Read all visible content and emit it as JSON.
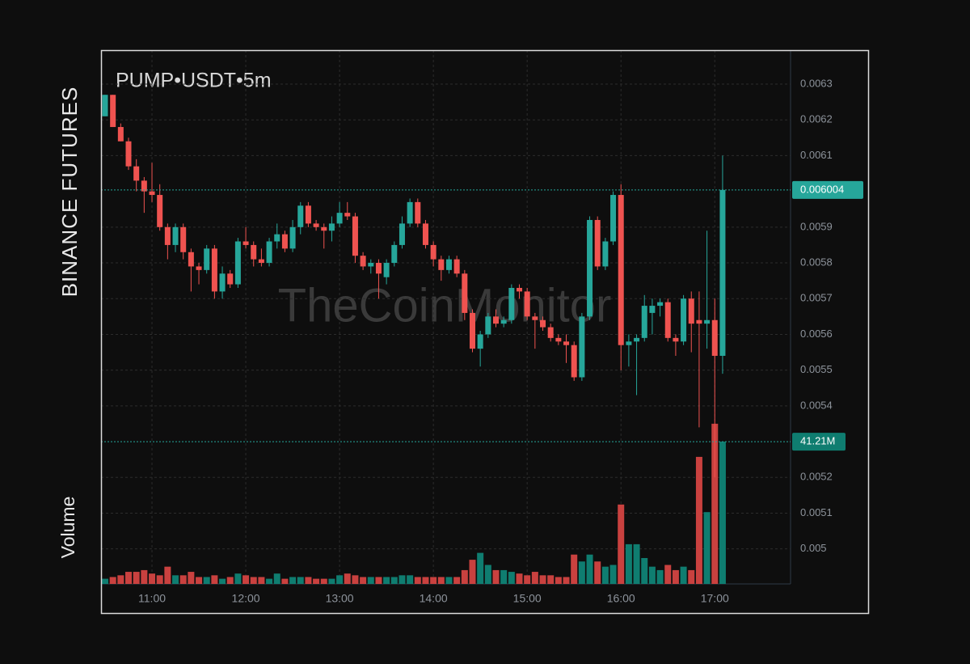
{
  "chart_data": {
    "type": "candlestick",
    "title": "PUMP•USDT•5m",
    "exchange": "BINANCE FUTURES",
    "watermark": "TheCoinMonitor",
    "x": [
      "10:30",
      "10:35",
      "10:40",
      "10:45",
      "10:50",
      "10:55",
      "11:00",
      "11:05",
      "11:10",
      "11:15",
      "11:20",
      "11:25",
      "11:30",
      "11:35",
      "11:40",
      "11:45",
      "11:50",
      "11:55",
      "12:00",
      "12:05",
      "12:10",
      "12:15",
      "12:20",
      "12:25",
      "12:30",
      "12:35",
      "12:40",
      "12:45",
      "12:50",
      "12:55",
      "13:00",
      "13:05",
      "13:10",
      "13:15",
      "13:20",
      "13:25",
      "13:30",
      "13:35",
      "13:40",
      "13:45",
      "13:50",
      "13:55",
      "14:00",
      "14:05",
      "14:10",
      "14:15",
      "14:20",
      "14:25",
      "14:30",
      "14:35",
      "14:40",
      "14:45",
      "14:50",
      "14:55",
      "15:00",
      "15:05",
      "15:10",
      "15:15",
      "15:20",
      "15:25",
      "15:30",
      "15:35",
      "15:40",
      "15:45",
      "15:50",
      "15:55",
      "16:00",
      "16:05",
      "16:10",
      "16:15",
      "16:20",
      "16:25",
      "16:30",
      "16:35",
      "16:40",
      "16:45",
      "16:50",
      "16:55",
      "17:00",
      "17:05"
    ],
    "open": [
      0.00621,
      0.00627,
      0.00618,
      0.00614,
      0.00607,
      0.00603,
      0.006,
      0.00599,
      0.0059,
      0.00585,
      0.0059,
      0.00583,
      0.00579,
      0.00578,
      0.00584,
      0.00572,
      0.00577,
      0.00574,
      0.00586,
      0.00585,
      0.00581,
      0.0058,
      0.00586,
      0.00588,
      0.00584,
      0.0059,
      0.00596,
      0.00591,
      0.0059,
      0.00589,
      0.00591,
      0.00594,
      0.00593,
      0.00582,
      0.00579,
      0.0058,
      0.00576,
      0.0058,
      0.00585,
      0.00591,
      0.00597,
      0.00591,
      0.00585,
      0.00581,
      0.00578,
      0.00581,
      0.00577,
      0.00566,
      0.00556,
      0.0056,
      0.00565,
      0.00563,
      0.00564,
      0.00573,
      0.00572,
      0.00565,
      0.00564,
      0.00562,
      0.00559,
      0.00558,
      0.00557,
      0.00548,
      0.00565,
      0.00592,
      0.00579,
      0.00586,
      0.00599,
      0.00557,
      0.00558,
      0.00559,
      0.00566,
      0.00568,
      0.00569,
      0.00559,
      0.00558,
      0.0057,
      0.00564,
      0.00563,
      0.00564,
      0.00554
    ],
    "high": [
      0.00627,
      0.00627,
      0.00619,
      0.00615,
      0.00609,
      0.00604,
      0.00608,
      0.00602,
      0.00591,
      0.00591,
      0.00591,
      0.00584,
      0.0058,
      0.00585,
      0.00585,
      0.00579,
      0.00578,
      0.00587,
      0.0059,
      0.00586,
      0.00584,
      0.00587,
      0.00591,
      0.00589,
      0.00592,
      0.00597,
      0.00597,
      0.00592,
      0.00591,
      0.00593,
      0.00597,
      0.00597,
      0.00594,
      0.00583,
      0.00581,
      0.00581,
      0.00581,
      0.00586,
      0.00593,
      0.00598,
      0.00598,
      0.00592,
      0.00586,
      0.00582,
      0.00582,
      0.00582,
      0.00578,
      0.00567,
      0.00561,
      0.00566,
      0.00567,
      0.00565,
      0.00574,
      0.00574,
      0.00573,
      0.00566,
      0.00565,
      0.00563,
      0.0056,
      0.0056,
      0.00558,
      0.00566,
      0.00593,
      0.00593,
      0.00587,
      0.006,
      0.00602,
      0.0056,
      0.0056,
      0.00571,
      0.0057,
      0.0057,
      0.0057,
      0.0056,
      0.00571,
      0.00572,
      0.00572,
      0.00589,
      0.0057,
      0.0061
    ],
    "low": [
      0.00621,
      0.00618,
      0.00614,
      0.00606,
      0.006,
      0.00594,
      0.00597,
      0.00589,
      0.00581,
      0.00583,
      0.00581,
      0.00572,
      0.00574,
      0.00577,
      0.0057,
      0.0057,
      0.00573,
      0.00573,
      0.00584,
      0.00579,
      0.00579,
      0.00579,
      0.00584,
      0.00583,
      0.00583,
      0.00588,
      0.0059,
      0.00589,
      0.00584,
      0.00586,
      0.0059,
      0.00592,
      0.0058,
      0.00578,
      0.00577,
      0.0057,
      0.00574,
      0.00579,
      0.00584,
      0.0059,
      0.0059,
      0.00584,
      0.00579,
      0.00575,
      0.00577,
      0.00576,
      0.00564,
      0.00555,
      0.00551,
      0.00559,
      0.00562,
      0.00562,
      0.00563,
      0.0057,
      0.00564,
      0.00556,
      0.00561,
      0.00558,
      0.00557,
      0.00552,
      0.00547,
      0.00547,
      0.00564,
      0.00578,
      0.00578,
      0.00585,
      0.0055,
      0.00551,
      0.00543,
      0.00558,
      0.0056,
      0.00565,
      0.00558,
      0.00554,
      0.00557,
      0.00555,
      0.00534,
      0.00556,
      0.0052,
      0.00549
    ],
    "close": [
      0.00627,
      0.00618,
      0.00614,
      0.00607,
      0.00603,
      0.006,
      0.00599,
      0.0059,
      0.00585,
      0.0059,
      0.00583,
      0.00579,
      0.00578,
      0.00584,
      0.00572,
      0.00577,
      0.00574,
      0.00586,
      0.00585,
      0.00581,
      0.0058,
      0.00586,
      0.00588,
      0.00584,
      0.0059,
      0.00596,
      0.00591,
      0.0059,
      0.00589,
      0.00591,
      0.00594,
      0.00593,
      0.00582,
      0.00579,
      0.0058,
      0.00577,
      0.0058,
      0.00585,
      0.00591,
      0.00597,
      0.00591,
      0.00585,
      0.00581,
      0.00578,
      0.00581,
      0.00577,
      0.00566,
      0.00556,
      0.0056,
      0.00565,
      0.00563,
      0.00564,
      0.00573,
      0.00572,
      0.00565,
      0.00564,
      0.00562,
      0.00559,
      0.00558,
      0.00557,
      0.00548,
      0.00565,
      0.00592,
      0.00579,
      0.00586,
      0.00599,
      0.00557,
      0.00558,
      0.00559,
      0.00568,
      0.00568,
      0.00569,
      0.00559,
      0.00558,
      0.0057,
      0.00563,
      0.00563,
      0.00564,
      0.00554,
      0.006004
    ],
    "ylim": [
      0.004902,
      0.006395
    ],
    "yticks": [
      0.0063,
      0.0062,
      0.0061,
      0.0059,
      0.0058,
      0.0057,
      0.0056,
      0.0055,
      0.0054,
      0.0052,
      0.0051,
      0.005
    ],
    "xticks": [
      "11:00",
      "12:00",
      "13:00",
      "14:00",
      "15:00",
      "16:00",
      "17:00"
    ],
    "grid": true,
    "up_color": "#26a69a",
    "down_color": "#ef5350",
    "volume": {
      "name": "Volume",
      "ylim": [
        0,
        154.6
      ],
      "up_color": "#0f7d70",
      "down_color": "#c9413f",
      "values": [
        1.5,
        2,
        2.5,
        3.5,
        3.5,
        4,
        3,
        2.5,
        5,
        2.5,
        2.5,
        3.5,
        2,
        2,
        2.5,
        1.5,
        2,
        3,
        2.5,
        2,
        2,
        1.5,
        3,
        1.5,
        2,
        2,
        2,
        1.5,
        1.5,
        1.5,
        2.5,
        3,
        2.5,
        2,
        2,
        2,
        2,
        2,
        2.5,
        2.5,
        2,
        2,
        2,
        2,
        2,
        2,
        4,
        7,
        9,
        5.5,
        4,
        4,
        3.5,
        3,
        2.5,
        3.5,
        2.5,
        2.5,
        2,
        2,
        8.5,
        6.5,
        8.5,
        6.5,
        5,
        5.5,
        23,
        11.5,
        11.5,
        7.5,
        5,
        4,
        5.5,
        4,
        5,
        4,
        36.8,
        20.8,
        46.4,
        41.21
      ],
      "value_labels": [
        null,
        null,
        null,
        null,
        null,
        null,
        null,
        null,
        null,
        null,
        null,
        null,
        null,
        null,
        null,
        null,
        null,
        null,
        null,
        null,
        null,
        null,
        null,
        null,
        null,
        null,
        null,
        null,
        null,
        null,
        null,
        null,
        null,
        null,
        null,
        null,
        null,
        null,
        null,
        null,
        null,
        null,
        null,
        null,
        null,
        null,
        null,
        null,
        null,
        null,
        null,
        null,
        null,
        null,
        null,
        null,
        null,
        null,
        null,
        null,
        null,
        null,
        null,
        null,
        null,
        null,
        null,
        null,
        null,
        null,
        null,
        null,
        null,
        null,
        null,
        null,
        null,
        null,
        null,
        "41.21M"
      ]
    }
  }
}
